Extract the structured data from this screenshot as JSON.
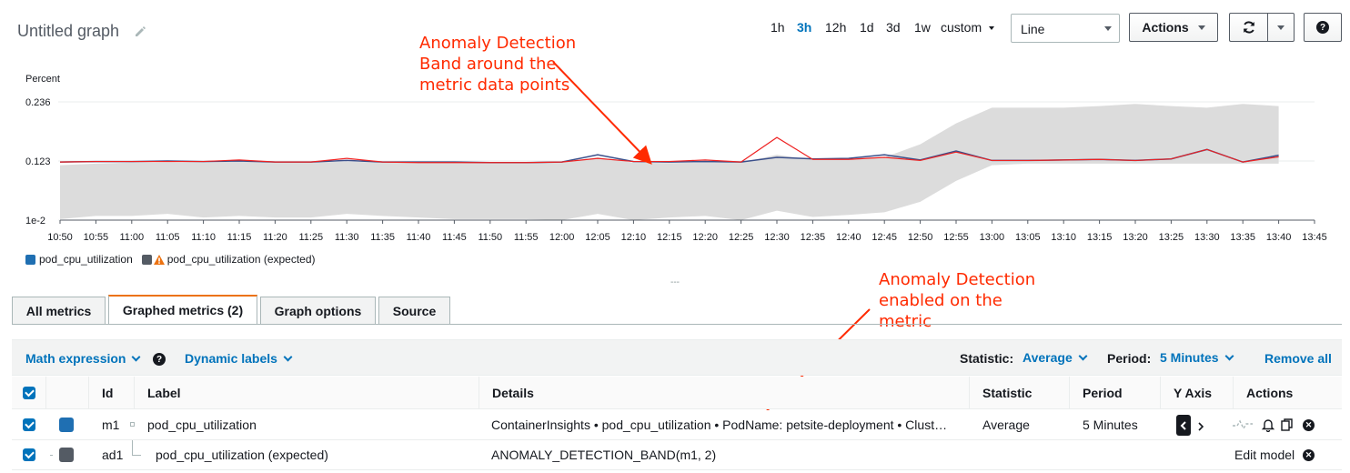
{
  "header": {
    "title": "Untitled graph",
    "ranges": [
      "1h",
      "3h",
      "12h",
      "1d",
      "3d",
      "1w"
    ],
    "active_range": "3h",
    "custom_label": "custom",
    "view_select": "Line",
    "actions_label": "Actions"
  },
  "annotations": {
    "band_lines": [
      "Anomaly Detection",
      "Band around the",
      "metric data points"
    ],
    "enabled_lines": [
      "Anomaly Detection",
      "enabled on the",
      "metric"
    ]
  },
  "chart_data": {
    "type": "line",
    "ylabel": "Percent",
    "y_ticks": [
      "0.236",
      "0.123",
      "1e-2"
    ],
    "x_ticks": [
      "10:50",
      "10:55",
      "11:00",
      "11:05",
      "11:10",
      "11:15",
      "11:20",
      "11:25",
      "11:30",
      "11:35",
      "11:40",
      "11:45",
      "11:50",
      "11:55",
      "12:00",
      "12:05",
      "12:10",
      "12:15",
      "12:20",
      "12:25",
      "12:30",
      "12:35",
      "12:40",
      "12:45",
      "12:50",
      "12:55",
      "13:00",
      "13:05",
      "13:10",
      "13:15",
      "13:20",
      "13:25",
      "13:30",
      "13:35",
      "13:40",
      "13:45"
    ],
    "ylim": [
      0.01,
      0.236
    ],
    "grid": true,
    "legend_position": "bottom-left",
    "x": [
      "10:50",
      "10:55",
      "11:00",
      "11:05",
      "11:10",
      "11:15",
      "11:20",
      "11:25",
      "11:30",
      "11:35",
      "11:40",
      "11:45",
      "11:50",
      "11:55",
      "12:00",
      "12:05",
      "12:10",
      "12:15",
      "12:20",
      "12:25",
      "12:30",
      "12:35",
      "12:40",
      "12:45",
      "12:50",
      "12:55",
      "13:00",
      "13:05",
      "13:10",
      "13:15",
      "13:20",
      "13:25",
      "13:30",
      "13:35",
      "13:40"
    ],
    "series": [
      {
        "name": "pod_cpu_utilization",
        "color": "#3a4f8a",
        "values": [
          0.121,
          0.122,
          0.122,
          0.123,
          0.122,
          0.123,
          0.121,
          0.121,
          0.124,
          0.121,
          0.121,
          0.121,
          0.12,
          0.12,
          0.121,
          0.135,
          0.122,
          0.121,
          0.122,
          0.121,
          0.13,
          0.127,
          0.128,
          0.135,
          0.125,
          0.142,
          0.124,
          0.124,
          0.125,
          0.126,
          0.124,
          0.127,
          0.145,
          0.121,
          0.134
        ]
      },
      {
        "name": "pod_cpu_utilization (expected)",
        "color": "#555555",
        "band_upper": [
          0.115,
          0.118,
          0.12,
          0.121,
          0.12,
          0.122,
          0.12,
          0.12,
          0.122,
          0.12,
          0.12,
          0.12,
          0.119,
          0.119,
          0.12,
          0.13,
          0.12,
          0.119,
          0.12,
          0.12,
          0.135,
          0.125,
          0.125,
          0.13,
          0.155,
          0.195,
          0.225,
          0.225,
          0.225,
          0.228,
          0.232,
          0.228,
          0.225,
          0.232,
          0.228
        ],
        "band_lower": [
          0.012,
          0.018,
          0.018,
          0.022,
          0.015,
          0.018,
          0.015,
          0.015,
          0.022,
          0.018,
          0.015,
          0.012,
          0.012,
          0.012,
          0.01,
          0.022,
          0.01,
          0.015,
          0.018,
          0.01,
          0.028,
          0.016,
          0.02,
          0.025,
          0.045,
          0.085,
          0.115,
          0.118,
          0.118,
          0.118,
          0.118,
          0.118,
          0.118,
          0.118,
          0.118
        ]
      }
    ],
    "raw_line": {
      "color": "#ee2222",
      "values": [
        0.121,
        0.122,
        0.122,
        0.122,
        0.122,
        0.125,
        0.121,
        0.121,
        0.128,
        0.121,
        0.12,
        0.12,
        0.12,
        0.12,
        0.121,
        0.128,
        0.122,
        0.122,
        0.125,
        0.121,
        0.168,
        0.126,
        0.126,
        0.13,
        0.124,
        0.14,
        0.124,
        0.124,
        0.125,
        0.126,
        0.124,
        0.127,
        0.145,
        0.121,
        0.131
      ]
    }
  },
  "legend": [
    {
      "label": "pod_cpu_utilization",
      "color": "#1f6fb2"
    },
    {
      "label": "pod_cpu_utilization (expected)",
      "color": "#545b64"
    }
  ],
  "tabs": [
    "All metrics",
    "Graphed metrics (2)",
    "Graph options",
    "Source"
  ],
  "toolbar": {
    "math_expression": "Math expression",
    "dynamic_labels": "Dynamic labels",
    "statistic_label": "Statistic:",
    "statistic_value": "Average",
    "period_label": "Period:",
    "period_value": "5 Minutes",
    "remove_all": "Remove all"
  },
  "table": {
    "columns": [
      "Id",
      "Label",
      "Details",
      "Statistic",
      "Period",
      "Y Axis",
      "Actions"
    ],
    "rows": [
      {
        "id": "m1",
        "label": "pod_cpu_utilization",
        "details": "ContainerInsights • pod_cpu_utilization • PodName: petsite-deployment • Clust…",
        "statistic": "Average",
        "period": "5 Minutes",
        "color": "#1f6fb2"
      },
      {
        "id": "ad1",
        "label": "pod_cpu_utilization (expected)",
        "details": "ANOMALY_DETECTION_BAND(m1, 2)",
        "edit_model": "Edit model",
        "color": "#545b64"
      }
    ]
  },
  "collapse_handle": "---"
}
